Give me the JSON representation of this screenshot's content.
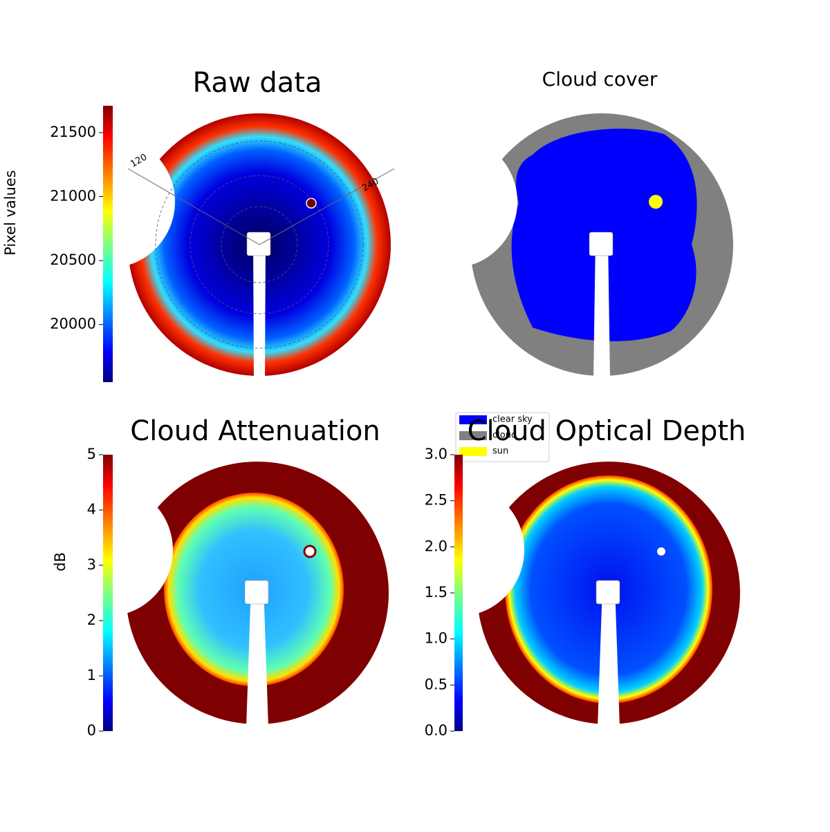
{
  "chart_data": [
    {
      "type": "image",
      "title": "Raw data",
      "ylabel": "Pixel values",
      "colormap": "jet",
      "ylim": [
        19550,
        21710
      ],
      "yticks": [
        20000,
        20500,
        21000,
        21500
      ],
      "annotations": [
        "120",
        "240"
      ]
    },
    {
      "type": "image",
      "title": "Cloud cover",
      "legend": [
        {
          "name": "clear sky",
          "color": "#0000ff"
        },
        {
          "name": "cloud",
          "color": "#808080"
        },
        {
          "name": "sun",
          "color": "#ffff00"
        }
      ]
    },
    {
      "type": "image",
      "title": "Cloud Attenuation",
      "ylabel": "dB",
      "colormap": "jet",
      "ylim": [
        0,
        5
      ],
      "yticks": [
        0,
        1,
        2,
        3,
        4,
        5
      ]
    },
    {
      "type": "image",
      "title": "Cloud Optical Depth",
      "colormap": "jet",
      "ylim": [
        0,
        3
      ],
      "yticks": [
        {
          "value": 0,
          "label": "0.0"
        },
        0.5,
        {
          "value": 1,
          "label": "1.0"
        },
        1.5,
        {
          "value": 2,
          "label": "2.0"
        },
        2.5,
        {
          "value": 3,
          "label": "3.0"
        }
      ]
    }
  ]
}
